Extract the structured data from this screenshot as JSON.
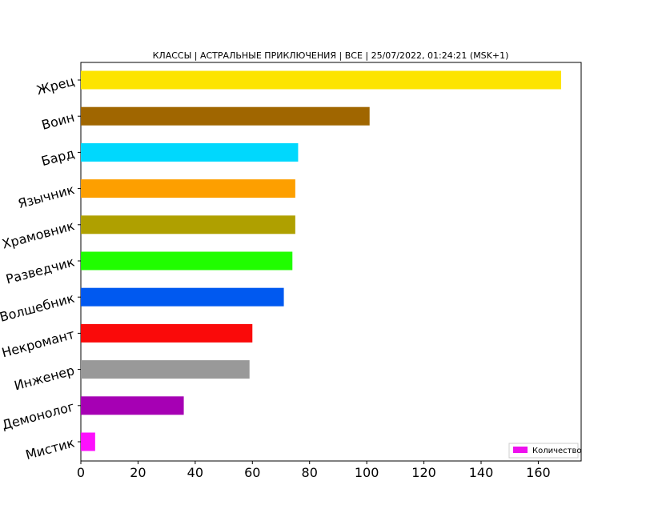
{
  "chart_data": {
    "type": "bar",
    "orientation": "horizontal",
    "title": "КЛАССЫ | АСТРАЛЬНЫЕ ПРИКЛЮЧЕНИЯ | ВСЕ | 25/07/2022, 01:24:21 (MSK+1)",
    "xlabel": "",
    "ylabel": "",
    "xlim": [
      0,
      175
    ],
    "x_ticks": [
      0,
      20,
      40,
      60,
      80,
      100,
      120,
      140,
      160
    ],
    "grid": false,
    "legend": {
      "placement": "lower-right",
      "entries": [
        "Количество"
      ],
      "color": "#ee10ee"
    },
    "categories": [
      "Жрец",
      "Воин",
      "Бард",
      "Язычник",
      "Храмовник",
      "Разведчик",
      "Волшебник",
      "Некромант",
      "Инженер",
      "Демонолог",
      "Мистик"
    ],
    "values": [
      168,
      101,
      76,
      75,
      75,
      74,
      71,
      60,
      59,
      36,
      5
    ],
    "colors": [
      "#fde400",
      "#a06600",
      "#00d8fd",
      "#fd9f00",
      "#afa000",
      "#20fd00",
      "#0059f0",
      "#fa0a0a",
      "#999999",
      "#a600b4",
      "#fd10fd"
    ]
  }
}
